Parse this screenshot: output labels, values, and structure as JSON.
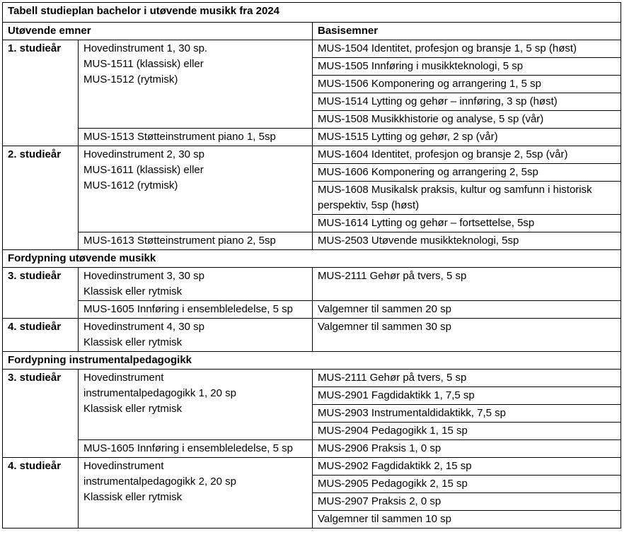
{
  "table": {
    "title": "Tabell studieplan bachelor i utøvende musikk fra 2024",
    "header": [
      "Utøvende emner",
      "Basisemner"
    ],
    "years": [
      {
        "label": "1. studieår",
        "groups": [
          {
            "main": [
              "Hovedinstrument 1, 30 sp.",
              "MUS-1511 (klassisk) eller",
              "MUS-1512 (rytmisk)"
            ],
            "basis": [
              "MUS-1504 Identitet, profesjon og bransje 1, 5 sp (høst)",
              "MUS-1505 Innføring i musikkteknologi, 5 sp",
              "MUS-1506 Komponering og arrangering 1, 5 sp",
              "MUS-1514 Lytting og gehør – innføring, 3 sp (høst)",
              "MUS-1508 Musikkhistorie og analyse, 5 sp (vår)"
            ]
          },
          {
            "main": [
              "MUS-1513 Støtteinstrument piano 1, 5sp"
            ],
            "basis": [
              "MUS-1515 Lytting og gehør, 2 sp (vår)"
            ]
          }
        ]
      },
      {
        "label": "2. studieår",
        "groups": [
          {
            "main": [
              "Hovedinstrument 2, 30 sp",
              "MUS-1611 (klassisk) eller",
              "MUS-1612 (rytmisk)"
            ],
            "basis": [
              "MUS-1604 Identitet, profesjon og bransje 2, 5sp (vår)",
              "MUS-1606 Komponering og arrangering 2, 5sp",
              "MUS-1608 Musikalsk praksis, kultur og samfunn i historisk perspektiv, 5sp (høst)",
              "MUS-1614 Lytting og gehør – fortsettelse, 5sp"
            ]
          },
          {
            "main": [
              "MUS-1613 Støtteinstrument piano 2, 5sp"
            ],
            "basis": [
              "MUS-2503 Utøvende musikkteknologi, 5sp"
            ]
          }
        ]
      }
    ],
    "sections": [
      {
        "heading": "Fordypning utøvende musikk",
        "years": [
          {
            "label": "3. studieår",
            "groups": [
              {
                "main": [
                  "Hovedinstrument 3, 30 sp",
                  "Klassisk eller rytmisk"
                ],
                "basis": [
                  "MUS-2111 Gehør på tvers, 5 sp"
                ]
              },
              {
                "main": [
                  "MUS-1605 Innføring i ensembleledelse, 5 sp"
                ],
                "basis": [
                  "Valgemner til sammen 20 sp"
                ]
              }
            ]
          },
          {
            "label": "4. studieår",
            "groups": [
              {
                "main": [
                  "Hovedinstrument 4, 30 sp",
                  "Klassisk eller rytmisk"
                ],
                "basis": [
                  "Valgemner til sammen 30 sp"
                ]
              }
            ]
          }
        ]
      },
      {
        "heading": "Fordypning instrumentalpedagogikk",
        "years": [
          {
            "label": "3. studieår",
            "groups": [
              {
                "main": [
                  "Hovedinstrument",
                  "instrumentalpedagogikk 1, 20 sp",
                  "Klassisk eller rytmisk"
                ],
                "basis": [
                  "MUS-2111 Gehør på tvers, 5 sp",
                  "MUS-2901 Fagdidaktikk 1, 7,5 sp",
                  "MUS-2903 Instrumentaldidaktikk, 7,5 sp",
                  "MUS-2904 Pedagogikk 1, 15 sp"
                ]
              },
              {
                "main": [
                  "MUS-1605 Innføring i ensembleledelse, 5 sp"
                ],
                "basis": [
                  "MUS-2906 Praksis 1, 0 sp"
                ]
              }
            ]
          },
          {
            "label": "4. studieår",
            "groups": [
              {
                "main": [
                  "Hovedinstrument",
                  "instrumentalpedagogikk 2, 20 sp",
                  "Klassisk eller rytmisk"
                ],
                "basis": [
                  "MUS-2902 Fagdidaktikk 2, 15 sp",
                  "MUS-2905 Pedagogikk 2, 15 sp",
                  "MUS-2907 Praksis 2, 0 sp",
                  "Valgemner til sammen 10 sp"
                ]
              }
            ]
          }
        ]
      }
    ]
  }
}
